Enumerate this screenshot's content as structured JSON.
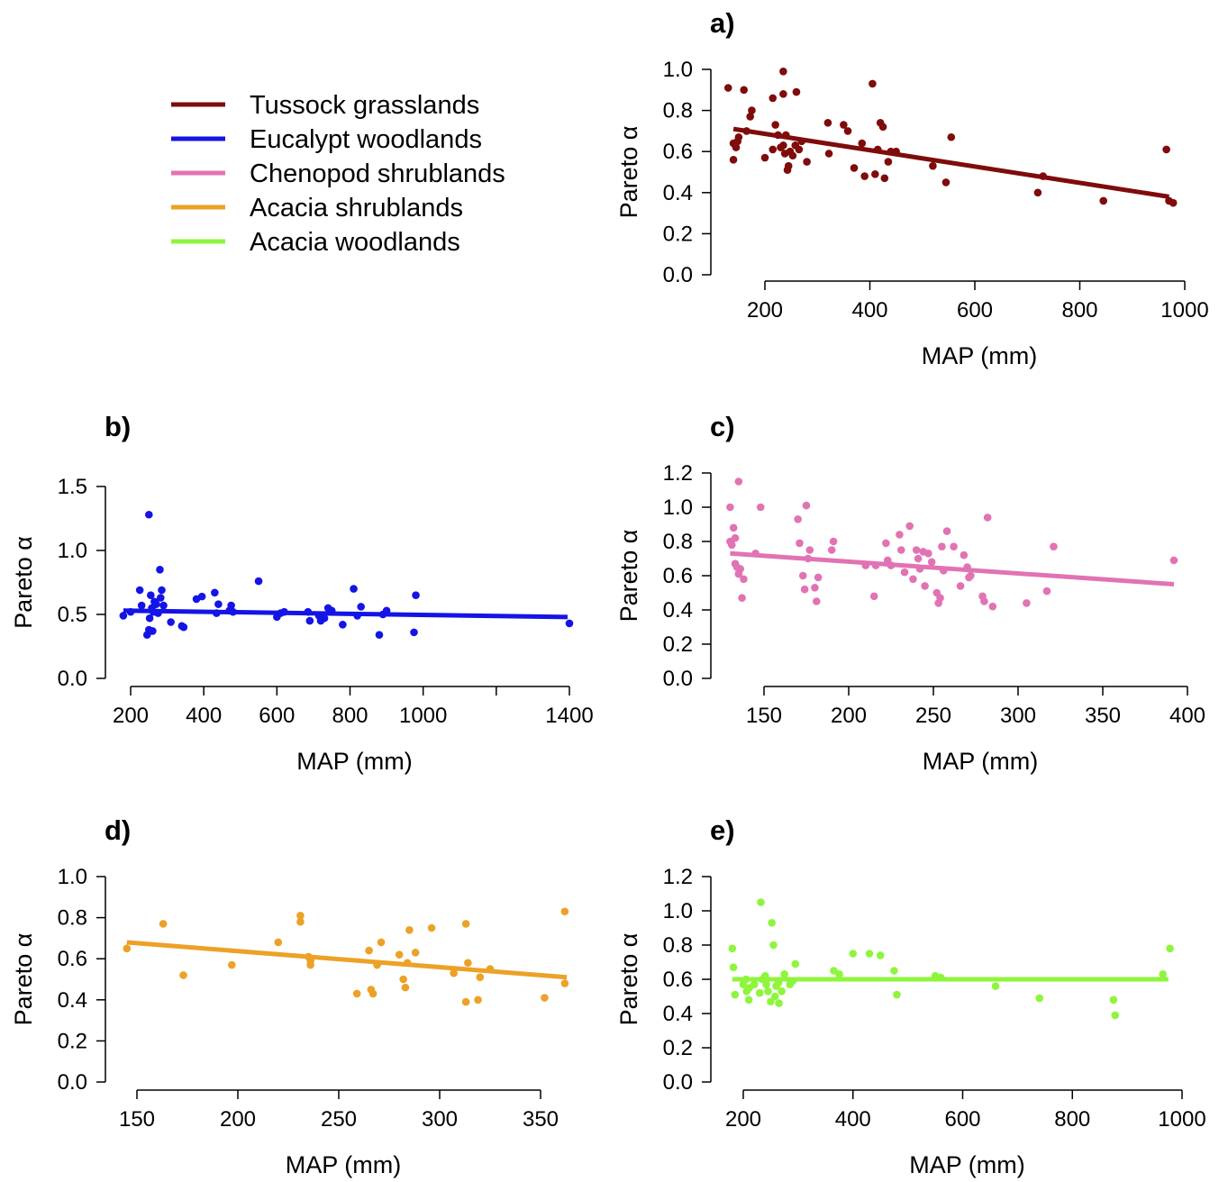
{
  "legend": {
    "items": [
      {
        "label": "Tussock grasslands",
        "color": "#7f0b0b"
      },
      {
        "label": "Eucalypt woodlands",
        "color": "#1414e6"
      },
      {
        "label": "Chenopod shrublands",
        "color": "#e173b4"
      },
      {
        "label": "Acacia shrublands",
        "color": "#eca127"
      },
      {
        "label": "Acacia woodlands",
        "color": "#8ef53c"
      }
    ]
  },
  "chart_data": [
    {
      "type": "scatter",
      "panel": "a)",
      "series_name": "Tussock grasslands",
      "color": "#7f0b0b",
      "xlabel": "MAP (mm)",
      "ylabel": "Pareto α",
      "xlim": [
        130,
        1000
      ],
      "ylim": [
        0,
        1.0
      ],
      "xticks": [
        200,
        400,
        600,
        800,
        1000
      ],
      "yticks": [
        0.0,
        0.2,
        0.4,
        0.6,
        0.8,
        1.0
      ],
      "fit_line": [
        [
          140,
          0.71
        ],
        [
          970,
          0.38
        ]
      ],
      "points": [
        [
          130,
          0.91
        ],
        [
          140,
          0.56
        ],
        [
          140,
          0.64
        ],
        [
          145,
          0.62
        ],
        [
          148,
          0.65
        ],
        [
          150,
          0.67
        ],
        [
          160,
          0.9
        ],
        [
          165,
          0.7
        ],
        [
          172,
          0.77
        ],
        [
          175,
          0.8
        ],
        [
          200,
          0.57
        ],
        [
          215,
          0.86
        ],
        [
          215,
          0.61
        ],
        [
          220,
          0.73
        ],
        [
          225,
          0.68
        ],
        [
          230,
          0.62
        ],
        [
          235,
          0.99
        ],
        [
          235,
          0.88
        ],
        [
          235,
          0.63
        ],
        [
          238,
          0.59
        ],
        [
          240,
          0.68
        ],
        [
          243,
          0.51
        ],
        [
          245,
          0.53
        ],
        [
          248,
          0.6
        ],
        [
          253,
          0.58
        ],
        [
          260,
          0.89
        ],
        [
          258,
          0.63
        ],
        [
          265,
          0.61
        ],
        [
          270,
          0.65
        ],
        [
          280,
          0.55
        ],
        [
          320,
          0.74
        ],
        [
          322,
          0.59
        ],
        [
          350,
          0.73
        ],
        [
          358,
          0.7
        ],
        [
          370,
          0.52
        ],
        [
          385,
          0.64
        ],
        [
          390,
          0.48
        ],
        [
          405,
          0.93
        ],
        [
          410,
          0.49
        ],
        [
          415,
          0.61
        ],
        [
          420,
          0.74
        ],
        [
          425,
          0.72
        ],
        [
          428,
          0.47
        ],
        [
          435,
          0.55
        ],
        [
          440,
          0.6
        ],
        [
          450,
          0.6
        ],
        [
          520,
          0.53
        ],
        [
          545,
          0.45
        ],
        [
          555,
          0.67
        ],
        [
          720,
          0.4
        ],
        [
          730,
          0.48
        ],
        [
          845,
          0.36
        ],
        [
          965,
          0.61
        ],
        [
          970,
          0.36
        ],
        [
          978,
          0.35
        ]
      ]
    },
    {
      "type": "scatter",
      "panel": "b)",
      "series_name": "Eucalypt woodlands",
      "color": "#1414e6",
      "xlabel": "MAP (mm)",
      "ylabel": "Pareto α",
      "xlim": [
        170,
        1420
      ],
      "ylim": [
        0,
        1.6
      ],
      "xticks": [
        200,
        400,
        600,
        800,
        1000,
        1200,
        1400
      ],
      "xtick_labels": [
        "200",
        "400",
        "600",
        "800",
        "1000",
        "",
        "1400"
      ],
      "yticks": [
        0.0,
        0.5,
        1.0,
        1.5
      ],
      "fit_line": [
        [
          180,
          0.53
        ],
        [
          1395,
          0.48
        ]
      ],
      "points": [
        [
          180,
          0.49
        ],
        [
          200,
          0.52
        ],
        [
          225,
          0.69
        ],
        [
          230,
          0.57
        ],
        [
          245,
          0.34
        ],
        [
          250,
          0.38
        ],
        [
          250,
          1.28
        ],
        [
          252,
          0.47
        ],
        [
          255,
          0.65
        ],
        [
          258,
          0.55
        ],
        [
          260,
          0.37
        ],
        [
          262,
          0.52
        ],
        [
          265,
          0.6
        ],
        [
          270,
          0.58
        ],
        [
          275,
          0.51
        ],
        [
          280,
          0.85
        ],
        [
          282,
          0.63
        ],
        [
          285,
          0.69
        ],
        [
          290,
          0.57
        ],
        [
          310,
          0.44
        ],
        [
          340,
          0.41
        ],
        [
          345,
          0.4
        ],
        [
          380,
          0.62
        ],
        [
          395,
          0.64
        ],
        [
          430,
          0.67
        ],
        [
          435,
          0.51
        ],
        [
          440,
          0.58
        ],
        [
          470,
          0.53
        ],
        [
          475,
          0.57
        ],
        [
          480,
          0.52
        ],
        [
          550,
          0.76
        ],
        [
          600,
          0.48
        ],
        [
          610,
          0.51
        ],
        [
          620,
          0.52
        ],
        [
          685,
          0.52
        ],
        [
          690,
          0.45
        ],
        [
          715,
          0.49
        ],
        [
          720,
          0.45
        ],
        [
          730,
          0.47
        ],
        [
          740,
          0.55
        ],
        [
          750,
          0.53
        ],
        [
          780,
          0.42
        ],
        [
          810,
          0.7
        ],
        [
          820,
          0.49
        ],
        [
          830,
          0.56
        ],
        [
          880,
          0.34
        ],
        [
          890,
          0.5
        ],
        [
          900,
          0.53
        ],
        [
          975,
          0.36
        ],
        [
          980,
          0.65
        ],
        [
          1400,
          0.43
        ]
      ]
    },
    {
      "type": "scatter",
      "panel": "c)",
      "series_name": "Chenopod shrublands",
      "color": "#e173b4",
      "xlabel": "MAP (mm)",
      "ylabel": "Pareto α",
      "xlim": [
        125,
        400
      ],
      "ylim": [
        0,
        1.2
      ],
      "xticks": [
        150,
        200,
        250,
        300,
        350,
        400
      ],
      "yticks": [
        0.0,
        0.2,
        0.4,
        0.6,
        0.8,
        1.0,
        1.2
      ],
      "fit_line": [
        [
          130,
          0.73
        ],
        [
          392,
          0.55
        ]
      ],
      "points": [
        [
          130,
          0.8
        ],
        [
          130,
          1.0
        ],
        [
          131,
          0.78
        ],
        [
          132,
          0.88
        ],
        [
          133,
          0.67
        ],
        [
          133,
          0.82
        ],
        [
          134,
          0.65
        ],
        [
          135,
          1.15
        ],
        [
          135,
          0.61
        ],
        [
          136,
          0.64
        ],
        [
          137,
          0.47
        ],
        [
          138,
          0.58
        ],
        [
          145,
          0.73
        ],
        [
          148,
          1.0
        ],
        [
          170,
          0.93
        ],
        [
          171,
          0.79
        ],
        [
          173,
          0.6
        ],
        [
          174,
          0.52
        ],
        [
          175,
          1.01
        ],
        [
          176,
          0.7
        ],
        [
          177,
          0.75
        ],
        [
          180,
          0.53
        ],
        [
          181,
          0.45
        ],
        [
          182,
          0.59
        ],
        [
          190,
          0.75
        ],
        [
          191,
          0.8
        ],
        [
          210,
          0.66
        ],
        [
          215,
          0.48
        ],
        [
          216,
          0.66
        ],
        [
          222,
          0.79
        ],
        [
          223,
          0.69
        ],
        [
          225,
          0.66
        ],
        [
          230,
          0.84
        ],
        [
          231,
          0.75
        ],
        [
          233,
          0.62
        ],
        [
          236,
          0.89
        ],
        [
          238,
          0.58
        ],
        [
          240,
          0.75
        ],
        [
          241,
          0.7
        ],
        [
          242,
          0.64
        ],
        [
          244,
          0.74
        ],
        [
          245,
          0.54
        ],
        [
          247,
          0.73
        ],
        [
          249,
          0.68
        ],
        [
          252,
          0.5
        ],
        [
          253,
          0.44
        ],
        [
          254,
          0.47
        ],
        [
          255,
          0.77
        ],
        [
          256,
          0.63
        ],
        [
          258,
          0.86
        ],
        [
          262,
          0.77
        ],
        [
          266,
          0.54
        ],
        [
          268,
          0.72
        ],
        [
          270,
          0.65
        ],
        [
          271,
          0.59
        ],
        [
          272,
          0.6
        ],
        [
          279,
          0.48
        ],
        [
          280,
          0.45
        ],
        [
          282,
          0.94
        ],
        [
          285,
          0.42
        ],
        [
          305,
          0.44
        ],
        [
          317,
          0.51
        ],
        [
          321,
          0.77
        ],
        [
          392,
          0.69
        ]
      ]
    },
    {
      "type": "scatter",
      "panel": "d)",
      "series_name": "Acacia shrublands",
      "color": "#eca127",
      "xlabel": "MAP (mm)",
      "ylabel": "Pareto α",
      "xlim": [
        140,
        365
      ],
      "ylim": [
        0,
        1.0
      ],
      "xticks": [
        150,
        200,
        250,
        300,
        350
      ],
      "yticks": [
        0.0,
        0.2,
        0.4,
        0.6,
        0.8,
        1.0
      ],
      "fit_line": [
        [
          145,
          0.68
        ],
        [
          363,
          0.51
        ]
      ],
      "points": [
        [
          145,
          0.65
        ],
        [
          163,
          0.77
        ],
        [
          173,
          0.52
        ],
        [
          197,
          0.57
        ],
        [
          220,
          0.68
        ],
        [
          231,
          0.81
        ],
        [
          231,
          0.78
        ],
        [
          235,
          0.61
        ],
        [
          236,
          0.59
        ],
        [
          236,
          0.57
        ],
        [
          259,
          0.43
        ],
        [
          265,
          0.64
        ],
        [
          266,
          0.45
        ],
        [
          267,
          0.43
        ],
        [
          269,
          0.57
        ],
        [
          271,
          0.68
        ],
        [
          280,
          0.62
        ],
        [
          282,
          0.5
        ],
        [
          283,
          0.46
        ],
        [
          284,
          0.58
        ],
        [
          285,
          0.74
        ],
        [
          288,
          0.63
        ],
        [
          296,
          0.75
        ],
        [
          307,
          0.53
        ],
        [
          313,
          0.39
        ],
        [
          313,
          0.77
        ],
        [
          314,
          0.58
        ],
        [
          319,
          0.4
        ],
        [
          320,
          0.51
        ],
        [
          325,
          0.55
        ],
        [
          352,
          0.41
        ],
        [
          362,
          0.48
        ],
        [
          362,
          0.83
        ]
      ]
    },
    {
      "type": "scatter",
      "panel": "e)",
      "series_name": "Acacia woodlands",
      "color": "#8ef53c",
      "xlabel": "MAP (mm)",
      "ylabel": "Pareto α",
      "xlim": [
        170,
        1010
      ],
      "ylim": [
        0,
        1.2
      ],
      "xticks": [
        200,
        400,
        600,
        800,
        1000
      ],
      "yticks": [
        0.0,
        0.2,
        0.4,
        0.6,
        0.8,
        1.0,
        1.2
      ],
      "fit_line": [
        [
          180,
          0.6
        ],
        [
          975,
          0.6
        ]
      ],
      "points": [
        [
          180,
          0.78
        ],
        [
          182,
          0.67
        ],
        [
          185,
          0.51
        ],
        [
          200,
          0.57
        ],
        [
          205,
          0.6
        ],
        [
          206,
          0.53
        ],
        [
          210,
          0.48
        ],
        [
          211,
          0.55
        ],
        [
          220,
          0.57
        ],
        [
          230,
          0.52
        ],
        [
          232,
          1.05
        ],
        [
          235,
          0.6
        ],
        [
          240,
          0.62
        ],
        [
          242,
          0.57
        ],
        [
          245,
          0.53
        ],
        [
          250,
          0.47
        ],
        [
          252,
          0.93
        ],
        [
          255,
          0.8
        ],
        [
          258,
          0.5
        ],
        [
          260,
          0.56
        ],
        [
          264,
          0.58
        ],
        [
          265,
          0.46
        ],
        [
          270,
          0.53
        ],
        [
          275,
          0.63
        ],
        [
          285,
          0.57
        ],
        [
          290,
          0.59
        ],
        [
          295,
          0.69
        ],
        [
          400,
          0.75
        ],
        [
          365,
          0.65
        ],
        [
          375,
          0.63
        ],
        [
          430,
          0.75
        ],
        [
          450,
          0.74
        ],
        [
          475,
          0.65
        ],
        [
          480,
          0.51
        ],
        [
          550,
          0.62
        ],
        [
          560,
          0.61
        ],
        [
          660,
          0.56
        ],
        [
          740,
          0.49
        ],
        [
          875,
          0.48
        ],
        [
          878,
          0.39
        ],
        [
          965,
          0.63
        ],
        [
          978,
          0.78
        ]
      ]
    }
  ]
}
